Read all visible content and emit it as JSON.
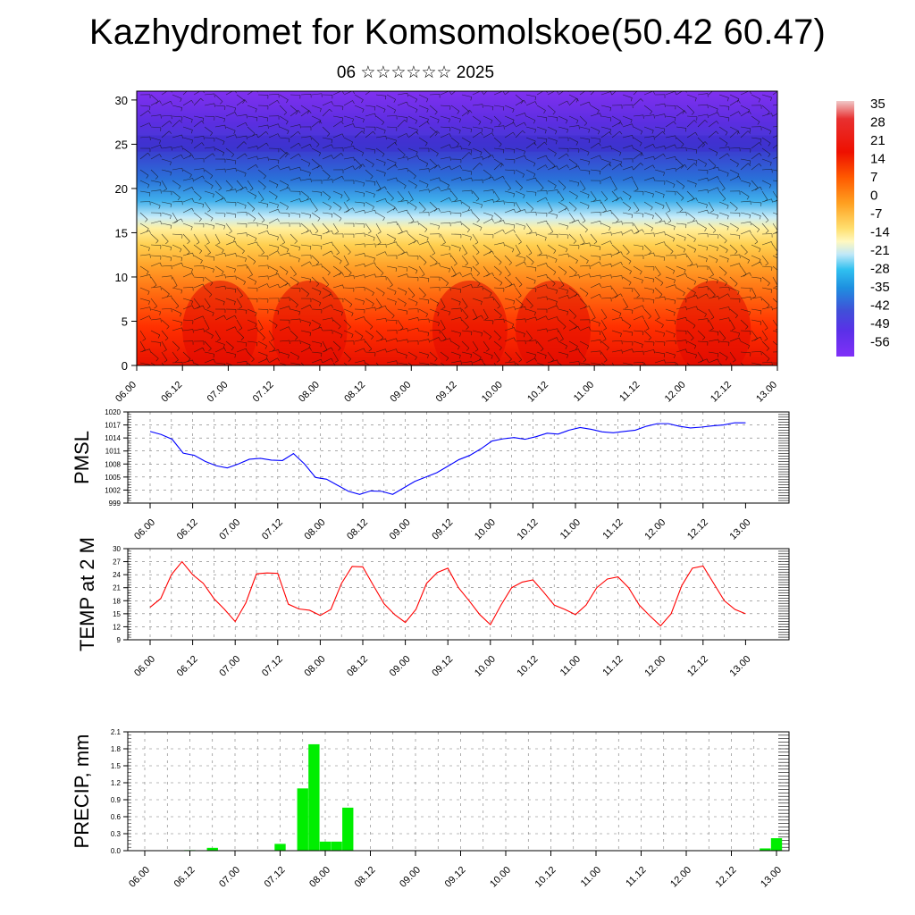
{
  "header": {
    "title": "Kazhydromet for Komsomolskoe(50.42 60.47)",
    "subtitle": "06 ☆☆☆☆☆☆ 2025"
  },
  "chart_data": [
    {
      "type": "heatmap",
      "id": "cross-section",
      "title": "",
      "xlabel": "",
      "ylabel": "",
      "x_ticks": [
        "06.00",
        "06.12",
        "07.00",
        "07.12",
        "08.00",
        "08.12",
        "09.00",
        "09.12",
        "10.00",
        "10.12",
        "11.00",
        "11.12",
        "12.00",
        "12.12",
        "13.00"
      ],
      "y_ticks": [
        0,
        5,
        10,
        15,
        20,
        25,
        30
      ],
      "ylim": [
        0,
        31
      ],
      "colorbar_labels": [
        "35",
        "28",
        "21",
        "14",
        "7",
        "0",
        "-7",
        "-14",
        "-21",
        "-28",
        "-35",
        "-42",
        "-49",
        "-56"
      ],
      "overlay": "wind-barbs"
    },
    {
      "type": "line",
      "id": "pmsl",
      "ylabel": "PMSL",
      "color": "#0000ff",
      "y_ticks": [
        999,
        1002,
        1005,
        1008,
        1011,
        1014,
        1017,
        1020
      ],
      "ylim": [
        999,
        1020
      ],
      "x_ticks": [
        "06.00",
        "06.12",
        "07.00",
        "07.12",
        "08.00",
        "08.12",
        "09.00",
        "09.12",
        "10.00",
        "10.12",
        "11.00",
        "11.12",
        "12.00",
        "12.12",
        "13.00"
      ],
      "values": [
        1015.5,
        1014.8,
        1013.7,
        1010.5,
        1010.0,
        1008.6,
        1007.6,
        1007.1,
        1008.0,
        1009.1,
        1009.3,
        1008.9,
        1008.8,
        1010.4,
        1008.0,
        1004.9,
        1004.5,
        1003.1,
        1001.7,
        1001.0,
        1001.8,
        1001.7,
        1001.0,
        1002.5,
        1004.0,
        1005.0,
        1006.0,
        1007.5,
        1009.0,
        1010.0,
        1011.5,
        1013.3,
        1013.8,
        1014.1,
        1013.7,
        1014.3,
        1015.1,
        1014.9,
        1015.8,
        1016.4,
        1016.0,
        1015.4,
        1015.2,
        1015.5,
        1015.8,
        1016.7,
        1017.3,
        1017.3,
        1016.7,
        1016.3,
        1016.5,
        1016.8,
        1017.0,
        1017.5,
        1017.5
      ]
    },
    {
      "type": "line",
      "id": "temp2m",
      "ylabel": "TEMP at 2 M",
      "color": "#ff0000",
      "y_ticks": [
        9,
        12,
        15,
        18,
        21,
        24,
        27,
        30
      ],
      "ylim": [
        9,
        30
      ],
      "x_ticks": [
        "06.00",
        "06.12",
        "07.00",
        "07.12",
        "08.00",
        "08.12",
        "09.00",
        "09.12",
        "10.00",
        "10.12",
        "11.00",
        "11.12",
        "12.00",
        "12.12",
        "13.00"
      ],
      "values": [
        16.5,
        18.5,
        24.0,
        27.0,
        24.0,
        22.0,
        18.5,
        16.0,
        13.2,
        17.5,
        24.2,
        24.4,
        24.3,
        17.2,
        16.1,
        15.8,
        14.6,
        16.0,
        22.0,
        25.9,
        25.8,
        21.5,
        17.3,
        14.8,
        13.0,
        16.0,
        22.0,
        24.5,
        25.5,
        21.0,
        18.0,
        14.8,
        12.5,
        17.0,
        21.0,
        22.3,
        22.8,
        20.0,
        17.0,
        16.0,
        14.8,
        17.0,
        21.0,
        23.0,
        23.5,
        21.0,
        17.0,
        14.5,
        12.2,
        15.0,
        21.5,
        25.5,
        26.0,
        22.0,
        18.0,
        16.0,
        15.0
      ]
    },
    {
      "type": "bar",
      "id": "precip",
      "ylabel": "PRECIP, mm",
      "color": "#00ee00",
      "y_ticks": [
        "0.0",
        "0.3",
        "0.6",
        "0.9",
        "1.2",
        "1.5",
        "1.8",
        "2.1"
      ],
      "ylim": [
        0,
        2.1
      ],
      "x_ticks": [
        "06.00",
        "06.12",
        "07.00",
        "07.12",
        "08.00",
        "08.12",
        "09.00",
        "09.12",
        "10.00",
        "10.12",
        "11.00",
        "11.12",
        "12.00",
        "12.12",
        "13.00"
      ],
      "values": [
        0,
        0,
        0,
        0,
        0.01,
        0,
        0.05,
        0,
        0,
        0,
        0,
        0,
        0.12,
        0,
        1.1,
        1.88,
        0.16,
        0.16,
        0.76,
        0,
        0,
        0,
        0,
        0,
        0,
        0,
        0,
        0,
        0,
        0,
        0,
        0,
        0,
        0,
        0,
        0,
        0,
        0,
        0,
        0,
        0,
        0,
        0,
        0,
        0,
        0,
        0,
        0,
        0,
        0,
        0,
        0,
        0,
        0,
        0,
        0.04,
        0.22
      ]
    }
  ]
}
